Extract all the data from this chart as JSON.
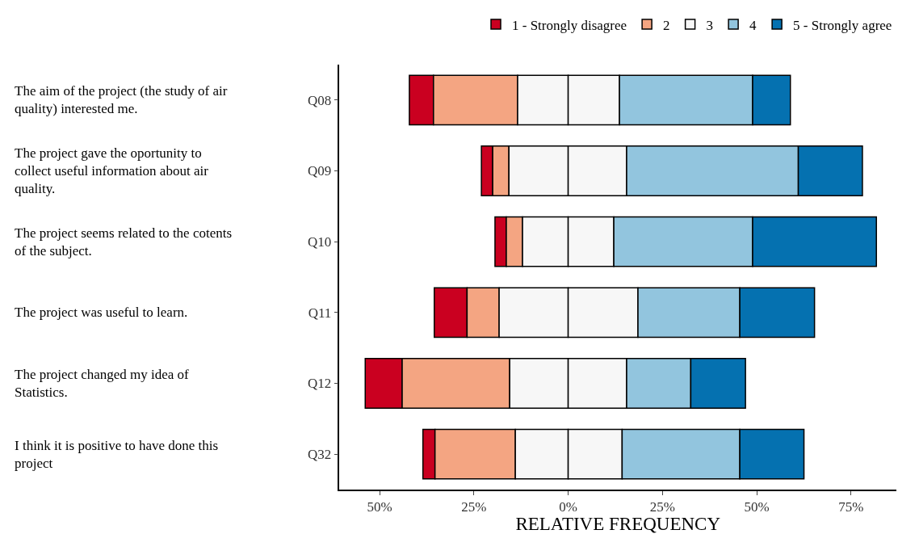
{
  "chart_data": {
    "type": "bar",
    "orientation": "horizontal",
    "xlabel": "RELATIVE FREQUENCY",
    "categories": [
      "Q08",
      "Q09",
      "Q10",
      "Q11",
      "Q12",
      "Q32"
    ],
    "series": [
      {
        "name": "1 - Strongly disagree",
        "color": "#ca0020",
        "values": [
          6.4,
          3,
          3,
          8.7,
          9.8,
          3.2
        ],
        "base": [
          -42.1,
          -23,
          -19.4,
          -35.5,
          -53.8,
          -38.5
        ]
      },
      {
        "name": "2",
        "color": "#f4a582",
        "values": [
          22.3,
          4.3,
          4.3,
          8.5,
          28.5,
          21.3
        ],
        "base": [
          -35.7,
          -20,
          -16.4,
          -26.8,
          -44,
          -35.3
        ]
      },
      {
        "name": "3",
        "color": "#f7f7f7",
        "values": [
          13.4,
          15.7,
          12.1,
          18.3,
          15.5,
          14
        ],
        "base": [
          -13.4,
          -15.7,
          -12.1,
          -18.3,
          -15.5,
          -14
        ]
      },
      {
        "color": "#f7f7f7",
        "values": [
          13.6,
          15.5,
          12.1,
          18.5,
          15.5,
          14.3
        ],
        "base": [
          0,
          0,
          0,
          0,
          0,
          0
        ]
      },
      {
        "name": "4",
        "color": "#92c5de",
        "values": [
          35.3,
          45.5,
          36.8,
          27,
          17,
          31.2
        ],
        "base": [
          13.6,
          15.5,
          12.1,
          18.5,
          15.5,
          14.3
        ]
      },
      {
        "name": "5 - Strongly agree",
        "color": "#0571b0",
        "values": [
          10,
          17,
          32.8,
          19.8,
          14.5,
          17
        ],
        "base": [
          48.9,
          61,
          48.9,
          45.5,
          32.5,
          45.5
        ]
      }
    ],
    "xlim": [
      -60.6,
      87
    ],
    "xticks": [
      {
        "value": -50,
        "label": "50%"
      },
      {
        "value": -25,
        "label": "25%"
      },
      {
        "value": 0,
        "label": "0%"
      },
      {
        "value": 25,
        "label": "25%"
      },
      {
        "value": 50,
        "label": "50%"
      },
      {
        "value": 75,
        "label": "75%"
      }
    ],
    "annotations": [
      "The aim of the project (the study of air quality) interested me.",
      "The project gave the oportunity to collect useful information about air quality.",
      "The project seems related to the cotents of the subject.",
      "The project was useful to learn.",
      "The project changed my idea of Statistics.",
      "I think it is positive to have done this project"
    ],
    "legend": "top right"
  }
}
